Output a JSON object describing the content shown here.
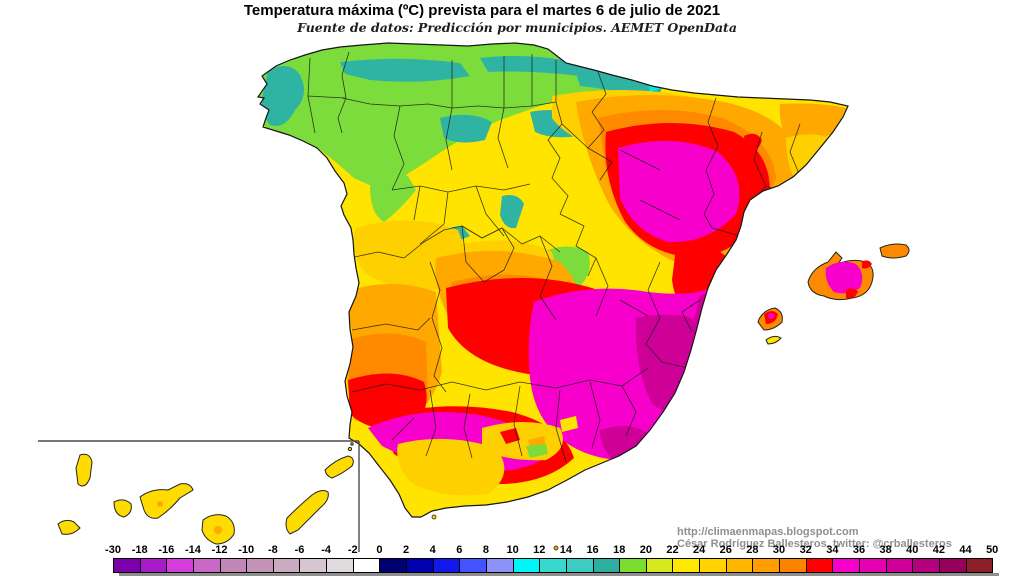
{
  "title": "Temperatura máxima (ºC) prevista para el martes 6 de julio de 2021",
  "subtitle": "Fuente de datos: Predicción por municipios. AEMET OpenData",
  "credits": {
    "url": "http://climaenmapas.blogspot.com",
    "author": "César Rodríguez Ballesteros, twitter: @crballesteros"
  },
  "legend": {
    "unit": "ºC",
    "tick_labels": [
      "-30",
      "-18",
      "-16",
      "-14",
      "-12",
      "-10",
      "-8",
      "-6",
      "-4",
      "-2",
      "0",
      "2",
      "4",
      "6",
      "8",
      "10",
      "12",
      "14",
      "16",
      "18",
      "20",
      "22",
      "24",
      "26",
      "28",
      "30",
      "32",
      "34",
      "36",
      "38",
      "40",
      "42",
      "44",
      "50"
    ],
    "cells": [
      {
        "from": -30,
        "to": -18,
        "color": "#7C00AC"
      },
      {
        "from": -18,
        "to": -16,
        "color": "#A81CC8"
      },
      {
        "from": -16,
        "to": -14,
        "color": "#D63CDC"
      },
      {
        "from": -14,
        "to": -12,
        "color": "#C868C8"
      },
      {
        "from": -12,
        "to": -10,
        "color": "#C286B8"
      },
      {
        "from": -10,
        "to": -8,
        "color": "#C494B6"
      },
      {
        "from": -8,
        "to": -6,
        "color": "#CCAAC2"
      },
      {
        "from": -6,
        "to": -4,
        "color": "#D6C6D2"
      },
      {
        "from": -4,
        "to": -2,
        "color": "#DEDADE"
      },
      {
        "from": -2,
        "to": 0,
        "color": "#FFFFFF"
      },
      {
        "from": 0,
        "to": 2,
        "color": "#00006E"
      },
      {
        "from": 2,
        "to": 4,
        "color": "#0000AC"
      },
      {
        "from": 4,
        "to": 6,
        "color": "#1418EC"
      },
      {
        "from": 6,
        "to": 8,
        "color": "#4354FF"
      },
      {
        "from": 8,
        "to": 10,
        "color": "#8A92F6"
      },
      {
        "from": 10,
        "to": 12,
        "color": "#00F6F6"
      },
      {
        "from": 12,
        "to": 14,
        "color": "#38D8CC"
      },
      {
        "from": 14,
        "to": 16,
        "color": "#3CCCC0"
      },
      {
        "from": 16,
        "to": 18,
        "color": "#2EAE9E"
      },
      {
        "from": 18,
        "to": 20,
        "color": "#7ADE2E"
      },
      {
        "from": 20,
        "to": 22,
        "color": "#D6E81E"
      },
      {
        "from": 22,
        "to": 24,
        "color": "#FFE800"
      },
      {
        "from": 24,
        "to": 26,
        "color": "#FFD200"
      },
      {
        "from": 26,
        "to": 28,
        "color": "#FFB600"
      },
      {
        "from": 28,
        "to": 30,
        "color": "#FF9E00"
      },
      {
        "from": 30,
        "to": 32,
        "color": "#FF8200"
      },
      {
        "from": 32,
        "to": 34,
        "color": "#FF0000"
      },
      {
        "from": 34,
        "to": 36,
        "color": "#F800CC"
      },
      {
        "from": 36,
        "to": 38,
        "color": "#E600B2"
      },
      {
        "from": 38,
        "to": 40,
        "color": "#CE0098"
      },
      {
        "from": 40,
        "to": 42,
        "color": "#B4007E"
      },
      {
        "from": 42,
        "to": 44,
        "color": "#96005A"
      },
      {
        "from": 44,
        "to": 50,
        "color": "#8C1E28"
      }
    ]
  },
  "palette": {
    "yellow": "#FFE400",
    "gold": "#FFD000",
    "orange": "#FFA800",
    "deep_orange": "#FF8A00",
    "red": "#FF0000",
    "magenta": "#F800CC",
    "dark_magenta": "#CE0098",
    "green": "#7CDC3C",
    "teal": "#2FB4A4",
    "cyan": "#00E8E8",
    "island_yellow": "#FFDC00",
    "outline": "#151515",
    "inset_line": "#4a4a4a"
  }
}
